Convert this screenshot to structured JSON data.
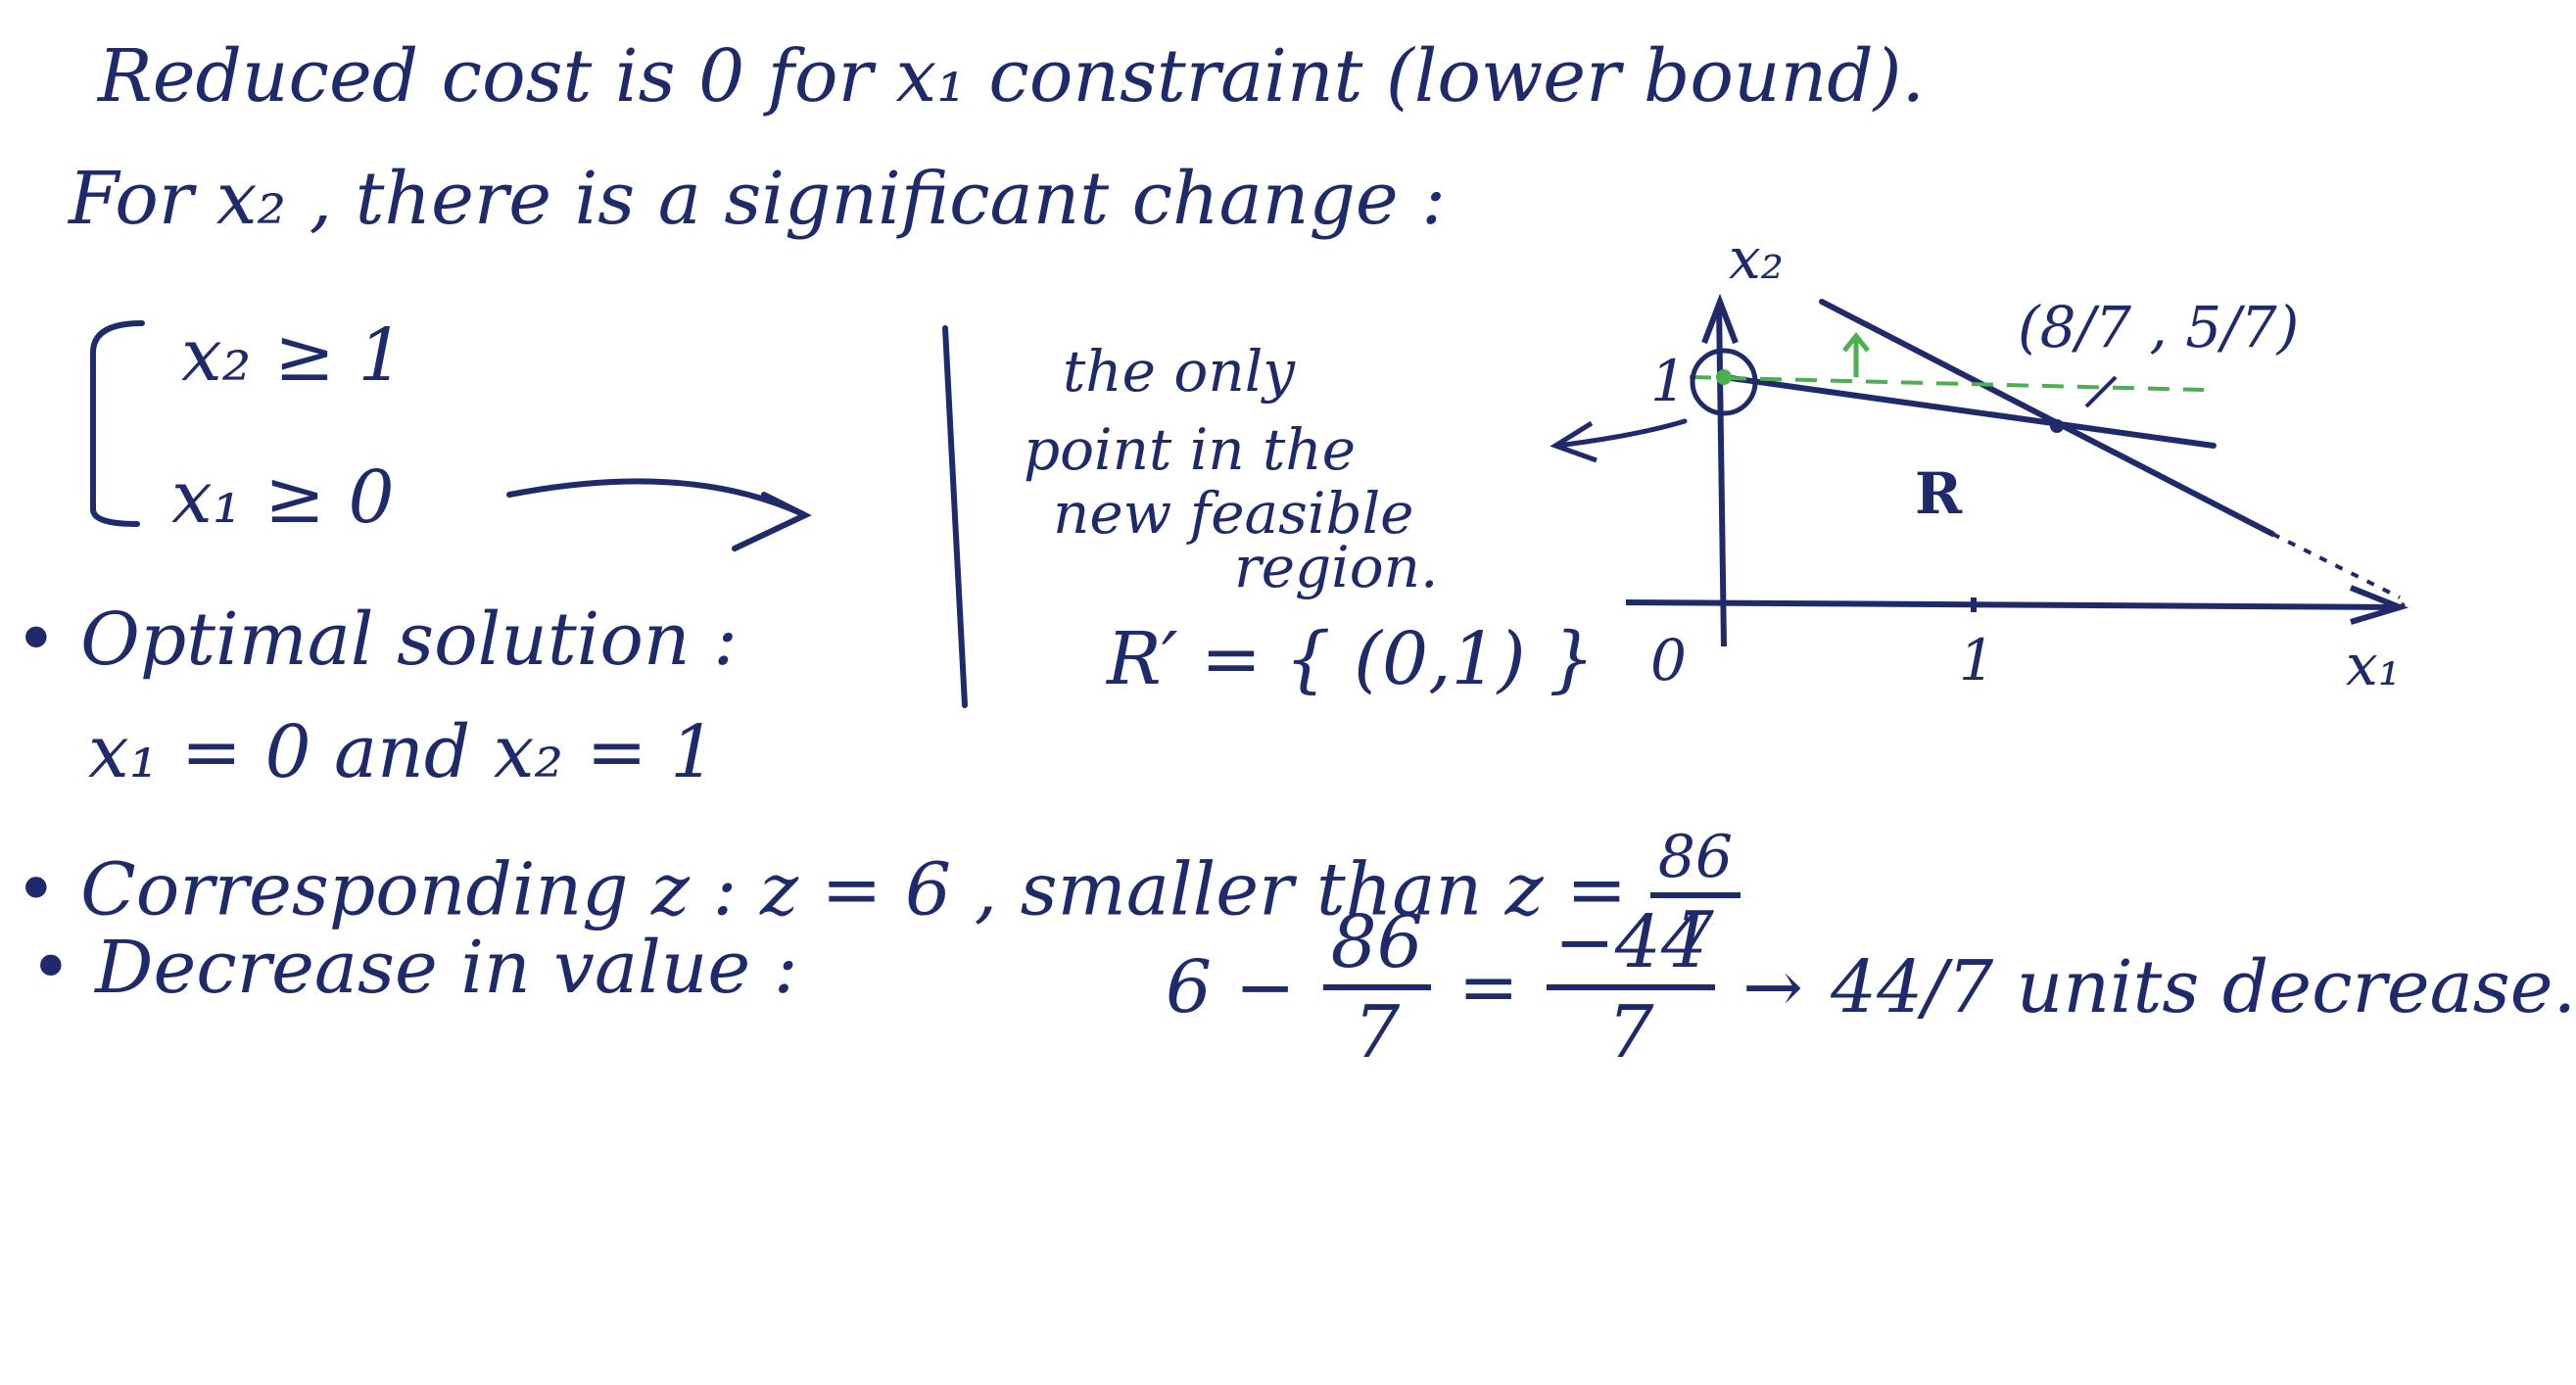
{
  "ink_color": "#1f2a6b",
  "accent_color": "#4caf50",
  "lines": {
    "l1": "Reduced   cost   is   0   for   x₁   constraint (lower bound).",
    "l2": "For   x₂ ,  there   is   a   significant   change :",
    "sys_a": "x₂ ≥ 1",
    "sys_b": "x₁ ≥ 0",
    "note_1": "the only",
    "note_2": "point in the",
    "note_3": "new feasible",
    "note_4": "region.",
    "rset": "R′ = { (0,1) }",
    "opt_head": "• Optimal   solution :",
    "opt_vals": "x₁ = 0    and   x₂ = 1",
    "corr_lead": "• Corresponding   z  :   z = 6 , smaller   than   z =",
    "corr_num": "86",
    "corr_den": "7",
    "dec_lead": "• Decrease   in   value  :",
    "dec_6": "6  −",
    "dec_n1": "86",
    "dec_d1": "7",
    "dec_eq": "=",
    "dec_n2": "−44",
    "dec_d2": "7",
    "dec_arrow": "→",
    "dec_tail": "44/7  units decrease."
  },
  "graph": {
    "x_axis_label": "x₁",
    "y_axis_label": "x₂",
    "origin": "0",
    "tick_x1": "1",
    "tick_y1": "1",
    "region": "R",
    "point": "(8/7 , 5/7)"
  }
}
